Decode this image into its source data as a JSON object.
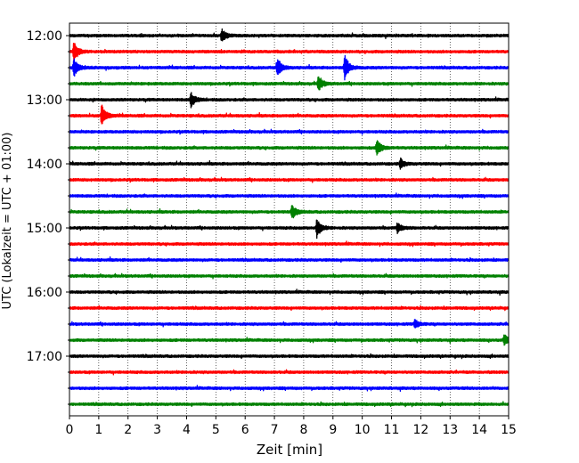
{
  "chart_data": {
    "type": "line",
    "chart_kind": "helicorder",
    "title": "",
    "xlabel": "Zeit  [min]",
    "ylabel": "UTC (Lokalzeit = UTC + 01:00)",
    "xlim": [
      0,
      15
    ],
    "x_ticks": [
      "0",
      "1",
      "2",
      "3",
      "4",
      "5",
      "6",
      "7",
      "8",
      "9",
      "10",
      "11",
      "12",
      "13",
      "14",
      "15"
    ],
    "y_tick_labels": [
      "12:00",
      "13:00",
      "14:00",
      "15:00",
      "16:00",
      "17:00"
    ],
    "grid": "vertical dotted lines at each minute",
    "trace_interval_min": 15,
    "trace_start": "12:00",
    "trace_count": 24,
    "trace_colors": [
      "#000000",
      "#ff0000",
      "#0000ff",
      "#008000"
    ],
    "events": [
      {
        "trace": 0,
        "minute": 5.2,
        "amp": 0.55
      },
      {
        "trace": 1,
        "minute": 0.15,
        "amp": 0.9
      },
      {
        "trace": 2,
        "minute": 0.15,
        "amp": 0.75
      },
      {
        "trace": 2,
        "minute": 7.1,
        "amp": 0.75
      },
      {
        "trace": 2,
        "minute": 9.4,
        "amp": 1.0
      },
      {
        "trace": 3,
        "minute": 8.5,
        "amp": 0.6
      },
      {
        "trace": 4,
        "minute": 4.15,
        "amp": 0.6
      },
      {
        "trace": 5,
        "minute": 1.1,
        "amp": 0.9
      },
      {
        "trace": 7,
        "minute": 10.5,
        "amp": 0.65
      },
      {
        "trace": 8,
        "minute": 11.3,
        "amp": 0.4
      },
      {
        "trace": 11,
        "minute": 7.6,
        "amp": 0.55
      },
      {
        "trace": 12,
        "minute": 8.45,
        "amp": 0.75
      },
      {
        "trace": 12,
        "minute": 11.2,
        "amp": 0.4
      },
      {
        "trace": 18,
        "minute": 11.8,
        "amp": 0.35
      },
      {
        "trace": 19,
        "minute": 14.85,
        "amp": 0.45
      }
    ]
  }
}
